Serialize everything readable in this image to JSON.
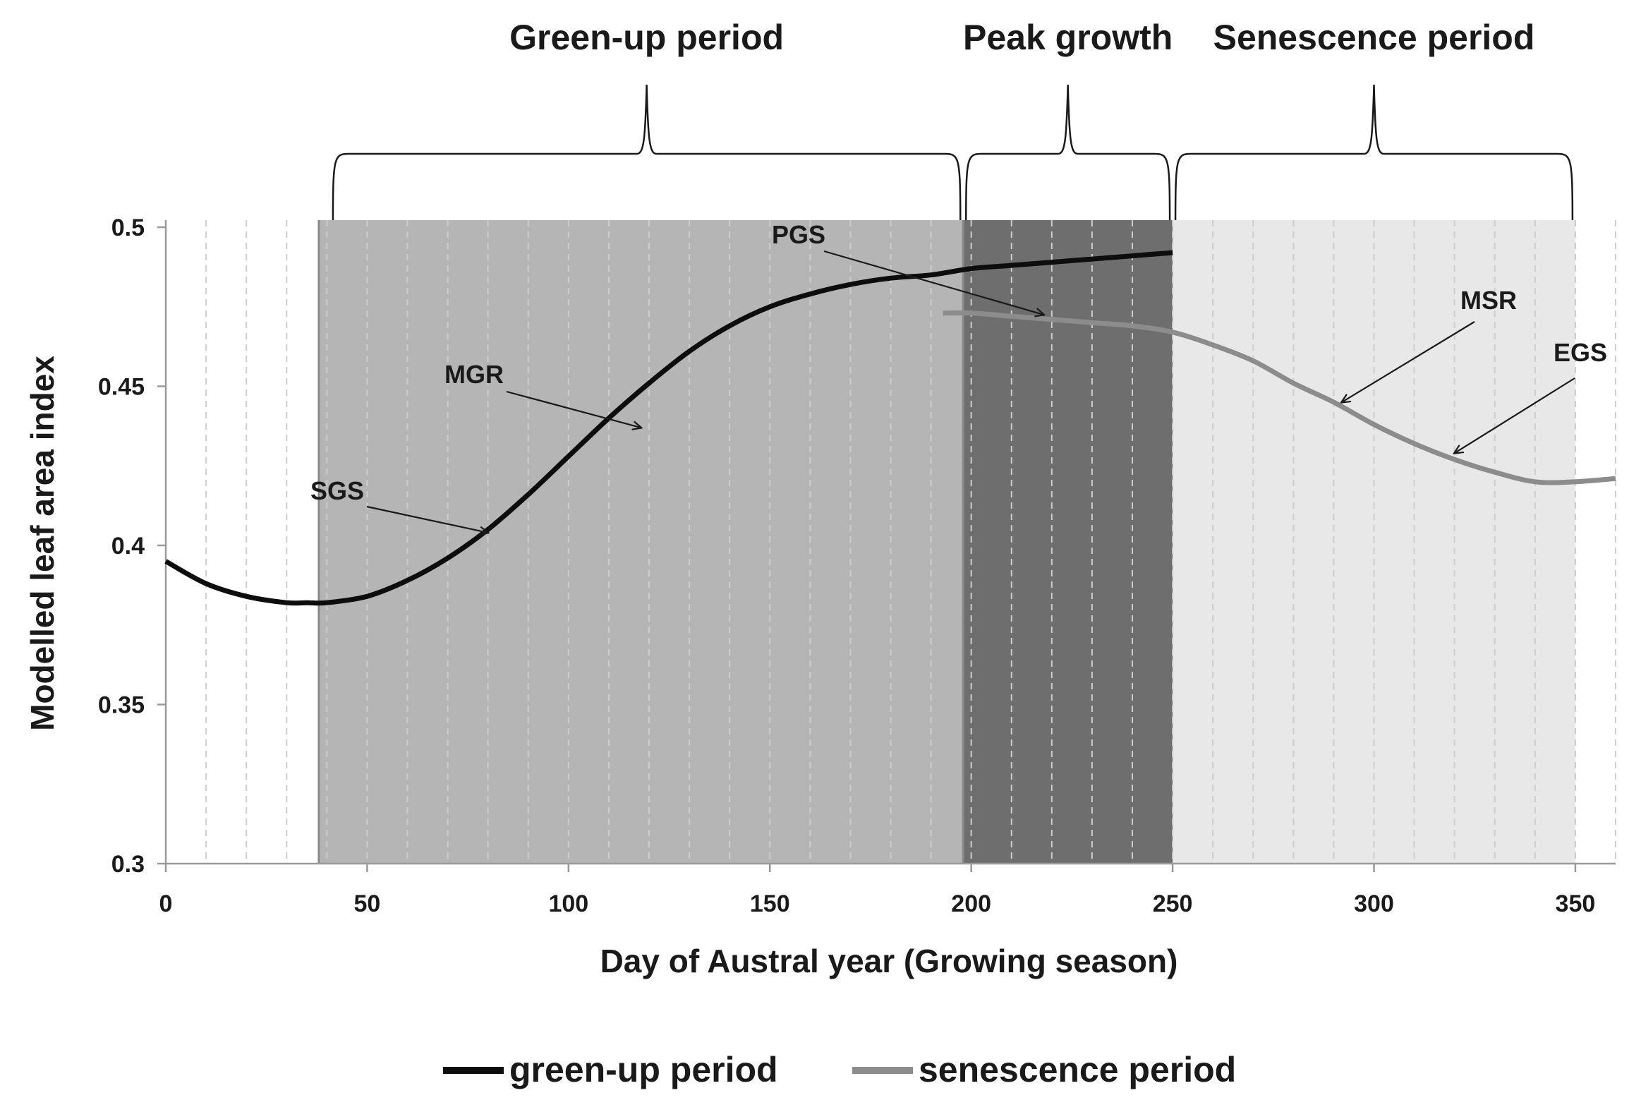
{
  "chart_data": {
    "type": "line",
    "xlabel": "Day of Austral year (Growing season)",
    "ylabel": "Modelled leaf area index",
    "xlim": [
      0,
      360
    ],
    "ylim": [
      0.3,
      0.5
    ],
    "x_ticks": [
      0,
      50,
      100,
      150,
      200,
      250,
      300,
      350
    ],
    "x_tick_labels": [
      "0",
      "50",
      "100",
      "150",
      "200",
      "250",
      "300",
      "350"
    ],
    "y_ticks": [
      0.3,
      0.35,
      0.4,
      0.45,
      0.5
    ],
    "y_tick_labels": [
      "0.3",
      "0.35",
      "0.4",
      "0.45",
      "0.5"
    ],
    "minor_gridlines_x": [
      10,
      20,
      30,
      40,
      50,
      60,
      70,
      80,
      90,
      100,
      110,
      120,
      130,
      140,
      150,
      160,
      170,
      180,
      190,
      200,
      210,
      220,
      230,
      240,
      250,
      260,
      270,
      280,
      290,
      300,
      310,
      320,
      330,
      340,
      350,
      360
    ],
    "series": [
      {
        "name": "green-up period",
        "color": "#0d0d0d",
        "x": [
          0,
          10,
          20,
          30,
          35,
          40,
          50,
          60,
          70,
          80,
          90,
          100,
          110,
          120,
          130,
          140,
          150,
          160,
          170,
          180,
          190,
          200,
          210,
          220,
          230,
          240,
          250
        ],
        "y": [
          0.395,
          0.388,
          0.384,
          0.382,
          0.382,
          0.382,
          0.384,
          0.389,
          0.396,
          0.405,
          0.416,
          0.428,
          0.44,
          0.451,
          0.461,
          0.469,
          0.475,
          0.479,
          0.482,
          0.484,
          0.485,
          0.487,
          0.488,
          0.489,
          0.49,
          0.491,
          0.492
        ]
      },
      {
        "name": "senescence period",
        "color": "#8c8c8c",
        "x": [
          193,
          200,
          210,
          220,
          230,
          240,
          250,
          260,
          270,
          280,
          290,
          300,
          310,
          320,
          330,
          340,
          350,
          360
        ],
        "y": [
          0.473,
          0.473,
          0.472,
          0.471,
          0.47,
          0.469,
          0.467,
          0.463,
          0.458,
          0.451,
          0.445,
          0.438,
          0.432,
          0.427,
          0.423,
          0.42,
          0.42,
          0.421
        ]
      }
    ],
    "shaded_regions": [
      {
        "name": "Green-up period",
        "start": 38,
        "end": 198,
        "color": "#b5b5b5"
      },
      {
        "name": "Peak growth",
        "start": 198,
        "end": 250,
        "color": "#6e6e6e"
      },
      {
        "name": "Senescence period",
        "start": 250,
        "end": 350,
        "color": "#e8e8e8"
      }
    ],
    "annotations": [
      {
        "label": "SGS",
        "target_x": 80,
        "target_y": 0.404
      },
      {
        "label": "MGR",
        "target_x": 118,
        "target_y": 0.437
      },
      {
        "label": "PGS",
        "target_x": 218,
        "target_y": 0.4725
      },
      {
        "label": "MSR",
        "target_x": 292,
        "target_y": 0.445
      },
      {
        "label": "EGS",
        "target_x": 320,
        "target_y": 0.429
      }
    ],
    "legend": {
      "position": "bottom",
      "entries": [
        "green-up period",
        "senescence period"
      ]
    }
  }
}
